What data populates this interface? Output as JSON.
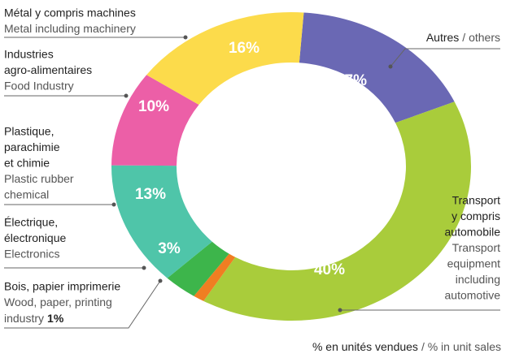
{
  "chart_data": {
    "type": "donut",
    "labels_fr": [
      [
        "Autres"
      ],
      [
        "Transport",
        "y compris",
        "automobile"
      ],
      [
        "Bois, papier imprimerie"
      ],
      [
        "Électrique,",
        "électronique"
      ],
      [
        "Plastique,",
        "parachimie",
        "et chimie"
      ],
      [
        "Industries",
        "agro-alimentaires"
      ],
      [
        "Métal y compris machines"
      ]
    ],
    "labels_en": [
      [
        "/ others"
      ],
      [
        "Transport",
        "equipment",
        "including",
        "automotive"
      ],
      [
        "Wood, paper, printing",
        "industry"
      ],
      [
        "Electronics"
      ],
      [
        "Plastic rubber",
        "chemical"
      ],
      [
        "Food Industry"
      ],
      [
        "Metal including machinery"
      ]
    ],
    "values": [
      17,
      40,
      1,
      3,
      13,
      10,
      16
    ],
    "value_labels": [
      "17%",
      "40%",
      "1%",
      "3%",
      "13%",
      "10%",
      "16%"
    ],
    "colors": [
      "#6a68b4",
      "#a9cc3b",
      "#f07e22",
      "#3db54b",
      "#4fc5a9",
      "#ec5fa7",
      "#fcdb4b"
    ],
    "note_fr": "% en unités vendues",
    "note_en": "/ % in unit sales"
  }
}
